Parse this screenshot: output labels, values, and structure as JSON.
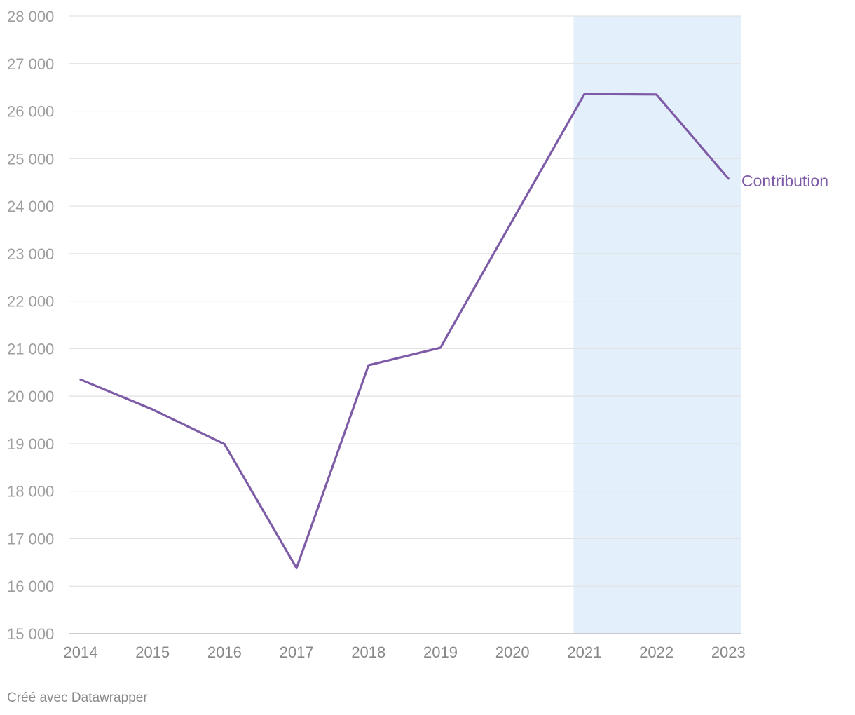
{
  "chart_data": {
    "type": "line",
    "x": [
      "2014",
      "2015",
      "2016",
      "2017",
      "2018",
      "2019",
      "2020",
      "2021",
      "2022",
      "2023"
    ],
    "series": [
      {
        "name": "Contribution",
        "values": [
          20350,
          19720,
          18990,
          16380,
          20650,
          21020,
          23700,
          26360,
          26350,
          24580
        ],
        "color": "#7e5ba6"
      }
    ],
    "ylim": [
      15000,
      28000
    ],
    "yticks": [
      15000,
      16000,
      17000,
      18000,
      19000,
      20000,
      21000,
      22000,
      23000,
      24000,
      25000,
      26000,
      27000,
      28000
    ],
    "ytick_labels": [
      "15 000",
      "16 000",
      "17 000",
      "18 000",
      "19 000",
      "20 000",
      "21 000",
      "22 000",
      "23 000",
      "24 000",
      "25 000",
      "26 000",
      "27 000",
      "28 000"
    ],
    "highlight_range": [
      "2020.85",
      "2023.1"
    ],
    "highlight_color": "#e3effb",
    "grid": true,
    "gridline_color": "#e2e2e2",
    "title": "",
    "xlabel": "",
    "ylabel": ""
  },
  "footer": {
    "credit": "Créé avec Datawrapper"
  }
}
